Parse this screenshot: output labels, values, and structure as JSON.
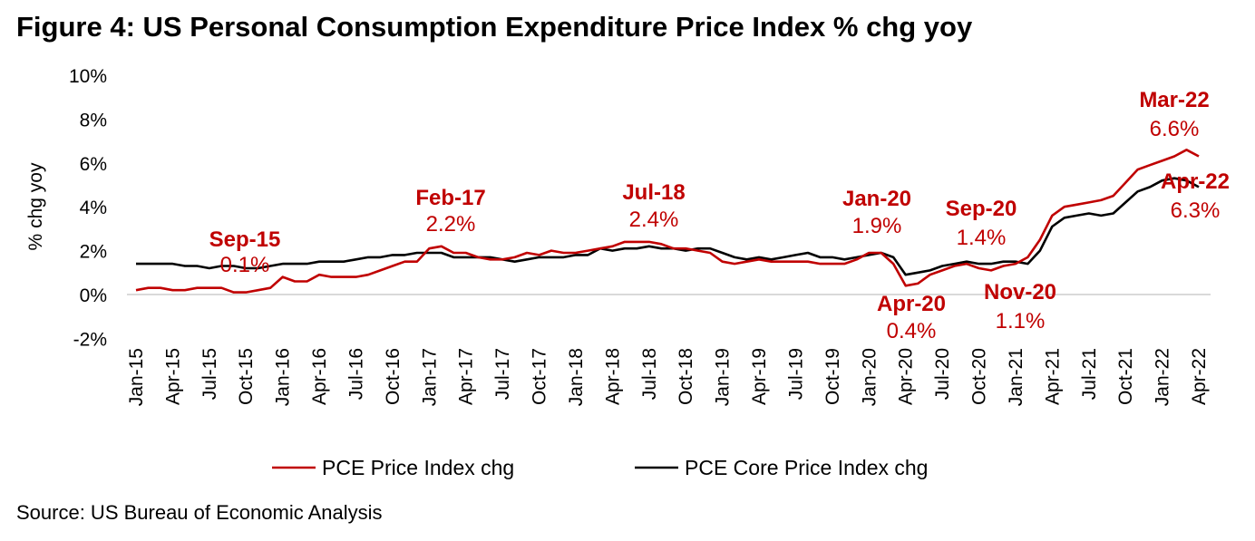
{
  "chart_data": {
    "type": "line",
    "title": "Figure 4: US Personal Consumption Expenditure Price Index % chg yoy",
    "ylabel": "% chg yoy",
    "xlabel": "",
    "ylim": [
      -2,
      10
    ],
    "yticks": [
      "10%",
      "8%",
      "6%",
      "4%",
      "2%",
      "0%",
      "-2%"
    ],
    "ytick_values": [
      10,
      8,
      6,
      4,
      2,
      0,
      -2
    ],
    "xticks": [
      "Jan-15",
      "Apr-15",
      "Jul-15",
      "Oct-15",
      "Jan-16",
      "Apr-16",
      "Jul-16",
      "Oct-16",
      "Jan-17",
      "Apr-17",
      "Jul-17",
      "Oct-17",
      "Jan-18",
      "Apr-18",
      "Jul-18",
      "Oct-18",
      "Jan-19",
      "Apr-19",
      "Jul-19",
      "Oct-19",
      "Jan-20",
      "Apr-20",
      "Jul-20",
      "Oct-20",
      "Jan-21",
      "Apr-21",
      "Jul-21",
      "Oct-21",
      "Jan-22",
      "Apr-22"
    ],
    "x_start": "Jan-15",
    "x_frequency": "monthly",
    "grid": "zero line only",
    "legend_position": "bottom",
    "series": [
      {
        "name": "PCE Price Index chg",
        "color": "#c00000",
        "values": [
          0.2,
          0.3,
          0.3,
          0.2,
          0.2,
          0.3,
          0.3,
          0.3,
          0.1,
          0.1,
          0.2,
          0.3,
          0.8,
          0.6,
          0.6,
          0.9,
          0.8,
          0.8,
          0.8,
          0.9,
          1.1,
          1.3,
          1.5,
          1.5,
          2.1,
          2.2,
          1.9,
          1.9,
          1.7,
          1.6,
          1.6,
          1.7,
          1.9,
          1.8,
          2.0,
          1.9,
          1.9,
          2.0,
          2.1,
          2.2,
          2.4,
          2.4,
          2.4,
          2.3,
          2.1,
          2.1,
          2.0,
          1.9,
          1.5,
          1.4,
          1.5,
          1.6,
          1.5,
          1.5,
          1.5,
          1.5,
          1.4,
          1.4,
          1.4,
          1.6,
          1.9,
          1.9,
          1.4,
          0.4,
          0.5,
          0.9,
          1.1,
          1.3,
          1.4,
          1.2,
          1.1,
          1.3,
          1.4,
          1.7,
          2.5,
          3.6,
          4.0,
          4.1,
          4.2,
          4.3,
          4.5,
          5.1,
          5.7,
          5.9,
          6.1,
          6.3,
          6.6,
          6.3
        ]
      },
      {
        "name": "PCE Core Price Index chg",
        "color": "#000000",
        "values": [
          1.4,
          1.4,
          1.4,
          1.4,
          1.3,
          1.3,
          1.2,
          1.3,
          1.3,
          1.2,
          1.2,
          1.3,
          1.4,
          1.4,
          1.4,
          1.5,
          1.5,
          1.5,
          1.6,
          1.7,
          1.7,
          1.8,
          1.8,
          1.9,
          1.9,
          1.9,
          1.7,
          1.7,
          1.7,
          1.7,
          1.6,
          1.5,
          1.6,
          1.7,
          1.7,
          1.7,
          1.8,
          1.8,
          2.1,
          2.0,
          2.1,
          2.1,
          2.2,
          2.1,
          2.1,
          2.0,
          2.1,
          2.1,
          1.9,
          1.7,
          1.6,
          1.7,
          1.6,
          1.7,
          1.8,
          1.9,
          1.7,
          1.7,
          1.6,
          1.7,
          1.8,
          1.9,
          1.7,
          0.9,
          1.0,
          1.1,
          1.3,
          1.4,
          1.5,
          1.4,
          1.4,
          1.5,
          1.5,
          1.4,
          2.0,
          3.1,
          3.5,
          3.6,
          3.7,
          3.6,
          3.7,
          4.2,
          4.7,
          4.9,
          5.2,
          5.3,
          5.2,
          4.9
        ]
      }
    ],
    "annotations": [
      {
        "month": "Sep-15",
        "value": "0.1%"
      },
      {
        "month": "Feb-17",
        "value": "2.2%"
      },
      {
        "month": "Jul-18",
        "value": "2.4%"
      },
      {
        "month": "Jan-20",
        "value": "1.9%"
      },
      {
        "month": "Sep-20",
        "value": "1.4%"
      },
      {
        "month": "Apr-20",
        "value": "0.4%"
      },
      {
        "month": "Nov-20",
        "value": "1.1%"
      },
      {
        "month": "Mar-22",
        "value": "6.6%"
      },
      {
        "month": "Apr-22",
        "value": "6.3%"
      }
    ],
    "source": "Source: US Bureau of Economic Analysis"
  }
}
